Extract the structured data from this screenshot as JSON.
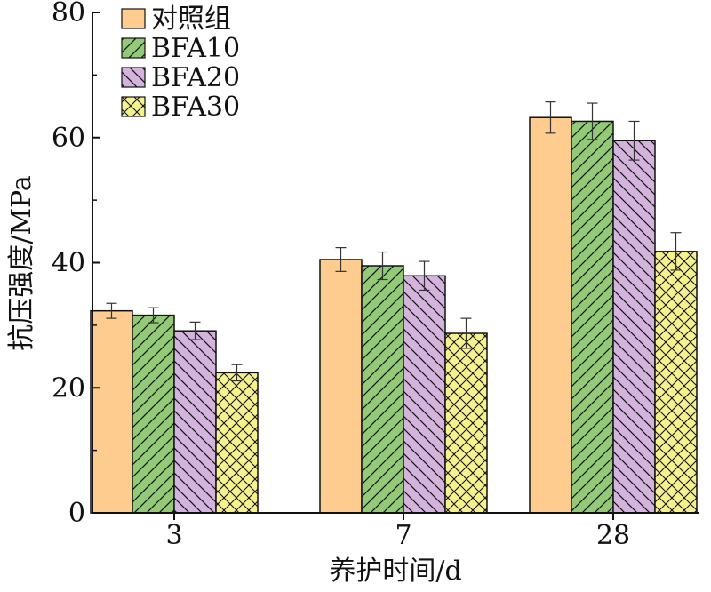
{
  "chart_data": {
    "type": "bar",
    "xlabel": "养护时间/d",
    "ylabel": "抗压强度/MPa",
    "categories": [
      "3",
      "7",
      "28"
    ],
    "ylim": [
      0,
      80
    ],
    "yticks": [
      "0",
      "20",
      "40",
      "60",
      "80"
    ],
    "grid": false,
    "legend_position": "top-left",
    "series": [
      {
        "name": "对照组",
        "color": "#fecc8e",
        "pattern": "solid",
        "values": [
          32.3,
          40.5,
          63.2
        ],
        "errors": [
          1.2,
          1.9,
          2.5
        ]
      },
      {
        "name": "BFA10",
        "color": "#93ca76",
        "pattern": "forward-diagonal",
        "values": [
          31.6,
          39.5,
          62.6
        ],
        "errors": [
          1.2,
          2.2,
          2.9
        ]
      },
      {
        "name": "BFA20",
        "color": "#d4b4dc",
        "pattern": "back-diagonal",
        "values": [
          29.1,
          37.9,
          59.5
        ],
        "errors": [
          1.4,
          2.3,
          3.1
        ]
      },
      {
        "name": "BFA30",
        "color": "#f6f38c",
        "pattern": "crosshatch",
        "values": [
          22.4,
          28.7,
          41.8
        ],
        "errors": [
          1.3,
          2.4,
          3.0
        ]
      }
    ]
  }
}
